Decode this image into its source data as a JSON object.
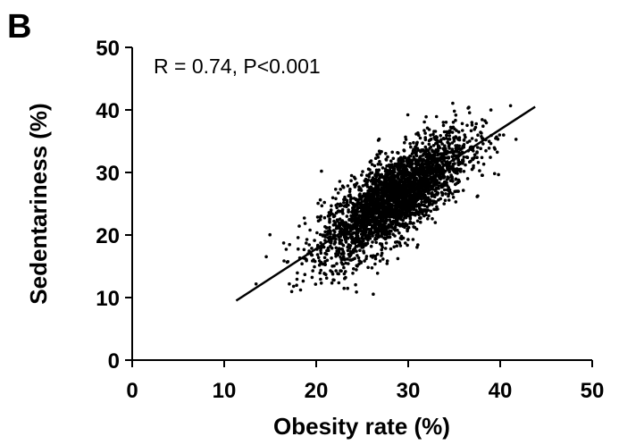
{
  "panel_label": "B",
  "chart_data": {
    "type": "scatter",
    "title": "",
    "xlabel": "Obesity rate (%)",
    "ylabel": "Sedentariness (%)",
    "xlim": [
      0,
      50
    ],
    "ylim": [
      0,
      50
    ],
    "xticks": [
      "0",
      "10",
      "20",
      "30",
      "40",
      "50"
    ],
    "yticks": [
      "0",
      "10",
      "20",
      "30",
      "40",
      "50"
    ],
    "annotation": "R = 0.74, P<0.001",
    "grid": false,
    "legend": false,
    "point_color": "#000000",
    "point_cloud": {
      "approx_count": 3000,
      "x_mean": 28.5,
      "y_mean": 26,
      "x_range": [
        11.5,
        44
      ],
      "y_range": [
        10,
        43
      ]
    },
    "regression_line": {
      "x": [
        11.3,
        43.8
      ],
      "y": [
        9.5,
        40.5
      ]
    }
  }
}
